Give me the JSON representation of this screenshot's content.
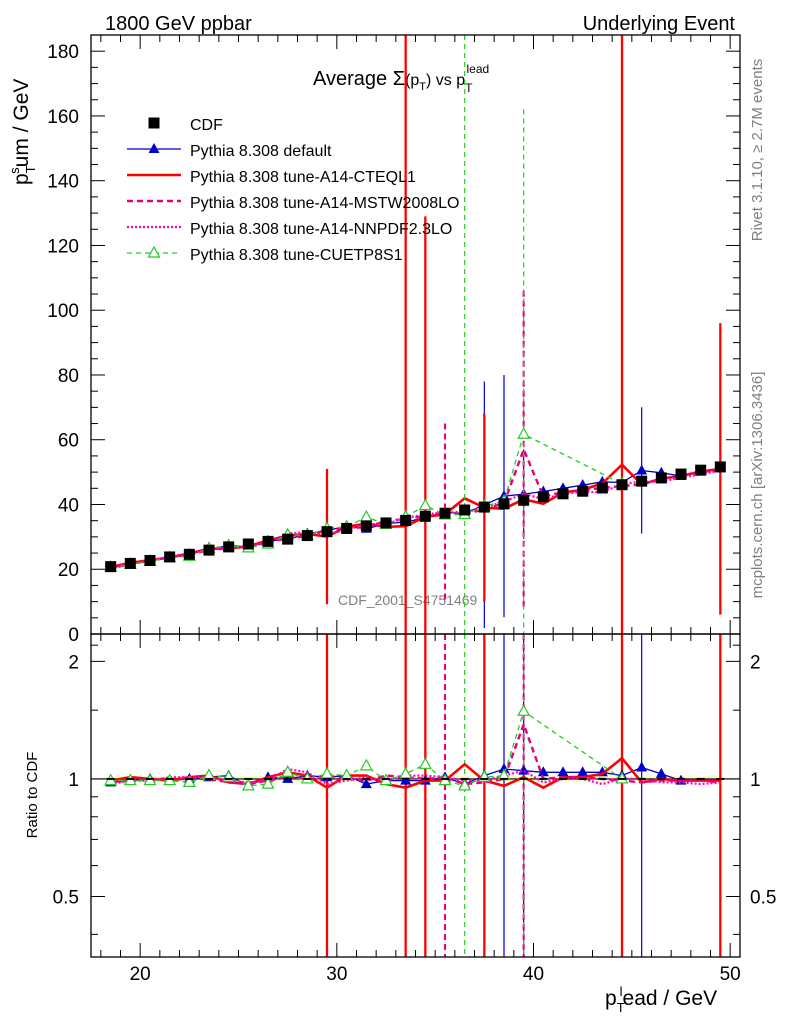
{
  "header": {
    "left": "1800 GeV ppbar",
    "right": "Underlying Event"
  },
  "side": {
    "rivet": "Rivet 3.1.10, ≥ 2.7M events",
    "mcplots": "mcplots.cern.ch [arXiv:1306.3436]"
  },
  "chart_data": {
    "type": "scatter",
    "title": "Average Σ(p_T) vs p_T^lead",
    "title_parts": {
      "main": "Average ",
      "sigma": "Σ",
      "p": "(p",
      "psub": "T",
      "mid": ") vs p",
      "sub2": "T",
      "sup2": "lead"
    },
    "analysis_label": "CDF_2001_S4751469",
    "xlabel": {
      "p": "p",
      "sub": "T",
      "sup": "l",
      "rest": "ead / GeV"
    },
    "ylabel": {
      "p": "p",
      "sub": "T",
      "sup": "s",
      "rest": "um / GeV"
    },
    "ratio_ylabel": "Ratio to CDF",
    "xlim": [
      17.5,
      50.5
    ],
    "ylim": [
      0,
      185
    ],
    "ratio_ylim": [
      0.35,
      2.35
    ],
    "xticks": [
      20,
      30,
      40,
      50
    ],
    "yticks": [
      0,
      20,
      40,
      60,
      80,
      100,
      120,
      140,
      160,
      180
    ],
    "ratio_yticks": [
      0.5,
      1,
      2
    ],
    "x": [
      18.5,
      19.5,
      20.5,
      21.5,
      22.5,
      23.5,
      24.5,
      25.5,
      26.5,
      27.5,
      28.5,
      29.5,
      30.5,
      31.5,
      32.5,
      33.5,
      34.5,
      35.5,
      36.5,
      37.5,
      38.5,
      39.5,
      40.5,
      41.5,
      42.5,
      43.5,
      44.5,
      45.5,
      46.5,
      47.5,
      48.5,
      49.5
    ],
    "series": [
      {
        "name": "CDF",
        "style": "data",
        "color": "#000000",
        "values": [
          20.8,
          21.8,
          22.7,
          23.8,
          24.6,
          25.9,
          26.9,
          27.8,
          28.6,
          29.3,
          30.4,
          31.6,
          32.6,
          33.4,
          34.3,
          35.1,
          36.4,
          37.3,
          38.3,
          39.2,
          40.2,
          41.3,
          42.4,
          43.3,
          44.1,
          45.1,
          46.1,
          47.2,
          48.2,
          49.4,
          50.6,
          51.6
        ]
      },
      {
        "name": "Pythia 8.308 default",
        "style": "default",
        "color": "#0000cc",
        "values": [
          20.4,
          21.6,
          22.7,
          23.6,
          24.7,
          26.1,
          27.4,
          26.8,
          28.8,
          29.2,
          31.0,
          31.9,
          33.4,
          32.5,
          34.1,
          34.6,
          35.9,
          37.6,
          37.2,
          39.9,
          42.6,
          43.2,
          44.0,
          45.0,
          46.0,
          47.0,
          46.8,
          50.5,
          49.8,
          48.8
        ],
        "err": [
          [
            37.5,
            78
          ],
          [
            38.5,
            80
          ],
          [
            39.5,
            57
          ],
          [
            44.5,
            60
          ],
          [
            45.5,
            70
          ]
        ]
      },
      {
        "name": "Pythia 8.308 tune-A14-CTEQL1",
        "style": "cteq",
        "color": "#ff0000",
        "values": [
          20.7,
          22.0,
          22.8,
          23.6,
          24.9,
          26.3,
          26.4,
          27.1,
          28.9,
          30.4,
          30.9,
          30.1,
          33.1,
          34.1,
          33.1,
          33.3,
          36.2,
          37.0,
          41.9,
          39.0,
          38.7,
          41.6,
          40.2,
          43.7,
          44.5,
          46.5,
          52.3,
          46.2,
          48.0,
          48.8,
          50.2,
          51.0
        ],
        "err": [
          [
            29.5,
            51
          ],
          [
            33.5,
            185
          ],
          [
            34.5,
            129
          ],
          [
            37.5,
            68
          ],
          [
            44.5,
            185
          ],
          [
            49.5,
            96
          ]
        ]
      },
      {
        "name": "Pythia 8.308 tune-A14-MSTW2008LO",
        "style": "mstw",
        "color": "#e8007a",
        "values": [
          20.2,
          21.8,
          22.6,
          23.8,
          24.5,
          26.0,
          26.4,
          27.0,
          28.4,
          29.5,
          30.3,
          32.2,
          32.7,
          33.0,
          34.9,
          35.6,
          36.4,
          37.6,
          37.0,
          38.5,
          40.4,
          57.0,
          42.5,
          43.8,
          44.4,
          45.1,
          45.7,
          46.2,
          47.8,
          48.9,
          50.0,
          50.6
        ],
        "err": [
          [
            35.5,
            65
          ],
          [
            39.5,
            106
          ]
        ]
      },
      {
        "name": "Pythia 8.308 tune-A14-NNPDF2.3LO",
        "style": "nnpdf",
        "color": "#ff00cc",
        "values": [
          20.1,
          21.6,
          22.5,
          24.0,
          24.9,
          26.1,
          26.5,
          27.2,
          28.3,
          31.0,
          31.5,
          30.8,
          32.2,
          33.9,
          34.0,
          35.8,
          37.0,
          37.5,
          37.8,
          39.0,
          40.9,
          43.3,
          41.7,
          43.3,
          43.9,
          43.8,
          46.3,
          47.1,
          47.0,
          48.3,
          49.3,
          50.5
        ]
      },
      {
        "name": "Pythia 8.308 tune-CUETP8S1",
        "style": "cuet",
        "color": "#22cc22",
        "values": [
          20.6,
          21.5,
          22.5,
          23.6,
          24.0,
          26.4,
          27.3,
          26.6,
          27.8,
          30.6,
          30.4,
          32.6,
          33.1,
          36.1,
          33.9,
          36.2,
          39.7,
          36.8,
          36.9,
          39.5,
          41.0,
          61.7,
          null,
          null,
          null,
          null,
          46.4
        ],
        "err": [
          [
            36.5,
            185
          ],
          [
            39.5,
            162
          ]
        ]
      }
    ],
    "ratio_series": [
      {
        "name": "Pythia 8.308 default",
        "values": [
          0.98,
          0.99,
          1.0,
          0.99,
          1.0,
          1.01,
          1.02,
          0.96,
          1.01,
          1.0,
          1.02,
          1.01,
          1.02,
          0.97,
          0.99,
          0.99,
          0.99,
          1.01,
          0.97,
          1.02,
          1.06,
          1.05,
          1.04,
          1.04,
          1.04,
          1.04,
          1.02,
          1.07,
          1.03,
          0.99
        ]
      },
      {
        "name": "Pythia 8.308 tune-A14-CTEQL1",
        "values": [
          0.99,
          1.01,
          1.0,
          0.99,
          1.01,
          1.02,
          0.98,
          0.97,
          1.01,
          1.04,
          1.02,
          0.95,
          1.02,
          1.02,
          0.97,
          0.95,
          0.99,
          0.99,
          1.09,
          0.99,
          0.96,
          1.01,
          0.95,
          1.01,
          1.01,
          1.03,
          1.13,
          0.98,
          1.0,
          0.99,
          0.99,
          0.99
        ]
      },
      {
        "name": "Pythia 8.308 tune-A14-MSTW2008LO",
        "values": [
          0.97,
          1.0,
          1.0,
          1.0,
          1.0,
          1.0,
          0.98,
          0.97,
          0.99,
          1.01,
          1.0,
          1.02,
          1.0,
          0.99,
          1.02,
          1.01,
          1.0,
          1.01,
          0.97,
          0.98,
          1.0,
          1.38,
          1.0,
          1.01,
          1.01,
          1.0,
          0.99,
          0.98,
          0.99,
          0.99,
          0.99,
          0.98
        ]
      },
      {
        "name": "Pythia 8.308 tune-A14-NNPDF2.3LO",
        "values": [
          0.97,
          0.99,
          0.99,
          1.01,
          1.01,
          1.01,
          0.99,
          0.98,
          0.99,
          1.06,
          1.04,
          0.97,
          0.99,
          1.01,
          0.99,
          1.02,
          1.02,
          1.01,
          0.99,
          0.99,
          1.02,
          1.05,
          0.98,
          1.0,
          1.0,
          0.97,
          1.0,
          1.0,
          0.98,
          0.98,
          0.97,
          0.98
        ]
      },
      {
        "name": "Pythia 8.308 tune-CUETP8S1",
        "values": [
          0.99,
          0.99,
          0.99,
          0.99,
          0.98,
          1.02,
          1.01,
          0.96,
          0.97,
          1.04,
          1.0,
          1.03,
          1.02,
          1.08,
          0.99,
          1.03,
          1.09,
          0.99,
          0.96,
          1.01,
          1.02,
          1.49,
          null,
          null,
          null,
          null,
          1.0
        ]
      }
    ]
  }
}
